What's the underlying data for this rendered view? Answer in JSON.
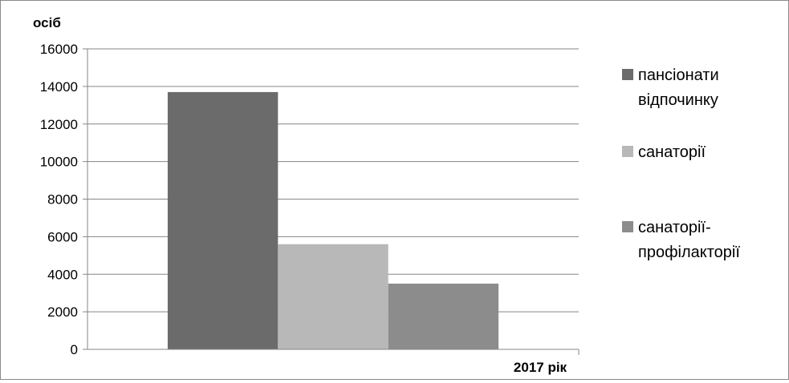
{
  "chart_data": {
    "type": "bar",
    "ylabel": "осіб",
    "xlabel": "2017 рік",
    "ylim": [
      0,
      16000
    ],
    "yticks": [
      0,
      2000,
      4000,
      6000,
      8000,
      10000,
      12000,
      14000,
      16000
    ],
    "grid": true,
    "legend_position": "right",
    "categories": [
      "2017 рік"
    ],
    "series": [
      {
        "name": "пансіонати відпочинку",
        "legend_lines": [
          "пансіонати",
          "відпочинку"
        ],
        "values": [
          13700
        ],
        "color": "#6b6b6b"
      },
      {
        "name": "санаторії",
        "legend_lines": [
          "санаторії"
        ],
        "values": [
          5600
        ],
        "color": "#b8b8b8"
      },
      {
        "name": "санаторії-профілакторії",
        "legend_lines": [
          "санаторії-",
          "профілакторії"
        ],
        "values": [
          3500
        ],
        "color": "#8c8c8c"
      }
    ]
  }
}
